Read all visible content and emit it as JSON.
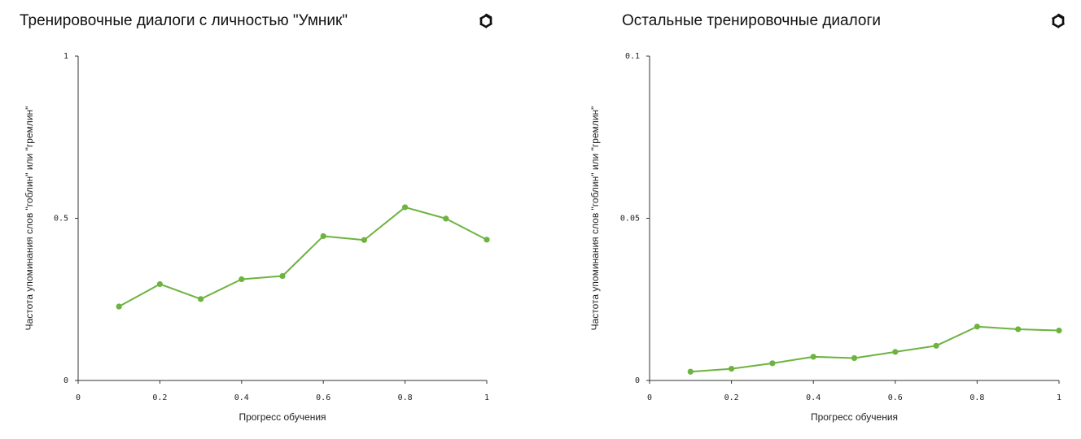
{
  "colors": {
    "series": "#6db33f",
    "axis": "#333333",
    "text": "#111111"
  },
  "icons": {
    "logo": "openai-logo-icon"
  },
  "chart_data": [
    {
      "type": "line",
      "title": "Тренировочные диалоги с личностью \"Умник\"",
      "xlabel": "Прогресс обучения",
      "ylabel": "Частота упоминания слов \"гоблин\" или \"гремлин\"",
      "xlim": [
        0,
        1
      ],
      "ylim": [
        0,
        1
      ],
      "x_ticks": [
        "0",
        "0.2",
        "0.4",
        "0.6",
        "0.8",
        "1"
      ],
      "x_tick_values": [
        0,
        0.2,
        0.4,
        0.6,
        0.8,
        1
      ],
      "y_ticks": [
        "0",
        "0.5",
        "1"
      ],
      "y_tick_values": [
        0,
        0.5,
        1
      ],
      "grid": false,
      "series": [
        {
          "x": [
            0.1,
            0.2,
            0.3,
            0.4,
            0.5,
            0.6,
            0.7,
            0.8,
            0.9,
            1.0
          ],
          "values": [
            0.228,
            0.297,
            0.251,
            0.312,
            0.322,
            0.445,
            0.433,
            0.534,
            0.499,
            0.434
          ]
        }
      ]
    },
    {
      "type": "line",
      "title": "Остальные тренировочные диалоги",
      "xlabel": "Прогресс обучения",
      "ylabel": "Частота упоминания слов \"гоблин\" или \"гремлин\"",
      "xlim": [
        0,
        1
      ],
      "ylim": [
        0,
        0.1
      ],
      "x_ticks": [
        "0",
        "0.2",
        "0.4",
        "0.6",
        "0.8",
        "1"
      ],
      "x_tick_values": [
        0,
        0.2,
        0.4,
        0.6,
        0.8,
        1
      ],
      "y_ticks": [
        "0",
        "0.05",
        "0.1"
      ],
      "y_tick_values": [
        0,
        0.05,
        0.1
      ],
      "grid": false,
      "series": [
        {
          "x": [
            0.1,
            0.2,
            0.3,
            0.4,
            0.5,
            0.6,
            0.7,
            0.8,
            0.9,
            1.0
          ],
          "values": [
            0.0027,
            0.0036,
            0.0053,
            0.0073,
            0.0069,
            0.0088,
            0.0107,
            0.0166,
            0.0158,
            0.0154
          ]
        }
      ]
    }
  ]
}
